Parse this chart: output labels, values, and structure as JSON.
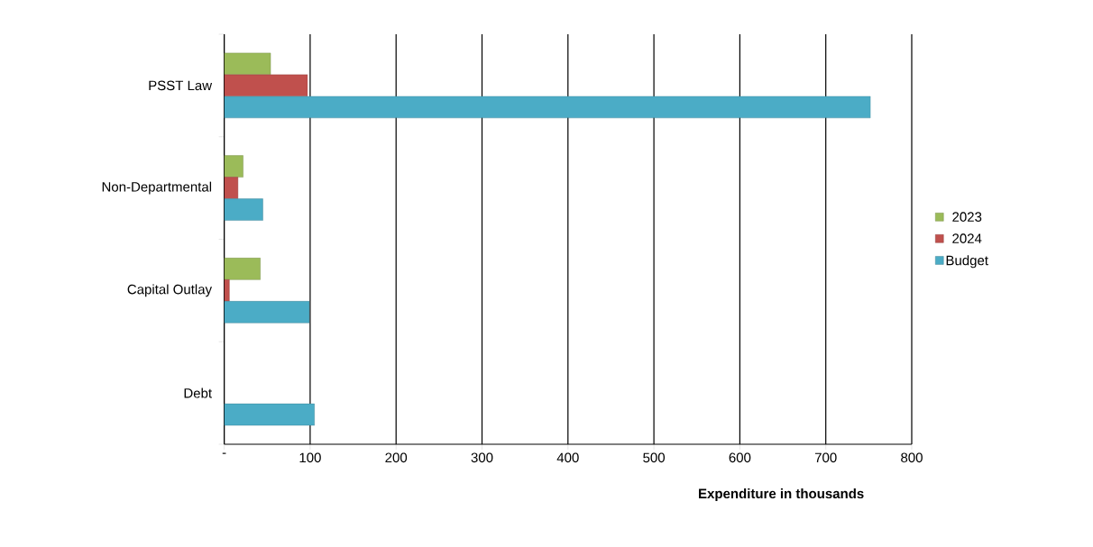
{
  "chart_data": {
    "type": "bar",
    "orientation": "horizontal",
    "xlabel": "Expenditure in thousands",
    "categories": [
      "PSST Law",
      "Non-Departmental",
      "Capital Outlay",
      "Debt"
    ],
    "series": [
      {
        "name": "2023",
        "color": "#9bbb59",
        "values": [
          54,
          22,
          42,
          null
        ]
      },
      {
        "name": "2024",
        "color": "#c0504d",
        "values": [
          97,
          16,
          6,
          null
        ]
      },
      {
        "name": "Budget",
        "color": "#4bacc6",
        "values": [
          752,
          45,
          99,
          105
        ]
      }
    ],
    "xlim": [
      0,
      800
    ],
    "xticks": [
      {
        "value": 0,
        "label": "-"
      },
      100,
      200,
      300,
      400,
      500,
      600,
      700,
      800
    ],
    "grid": "x",
    "legend": "right"
  }
}
